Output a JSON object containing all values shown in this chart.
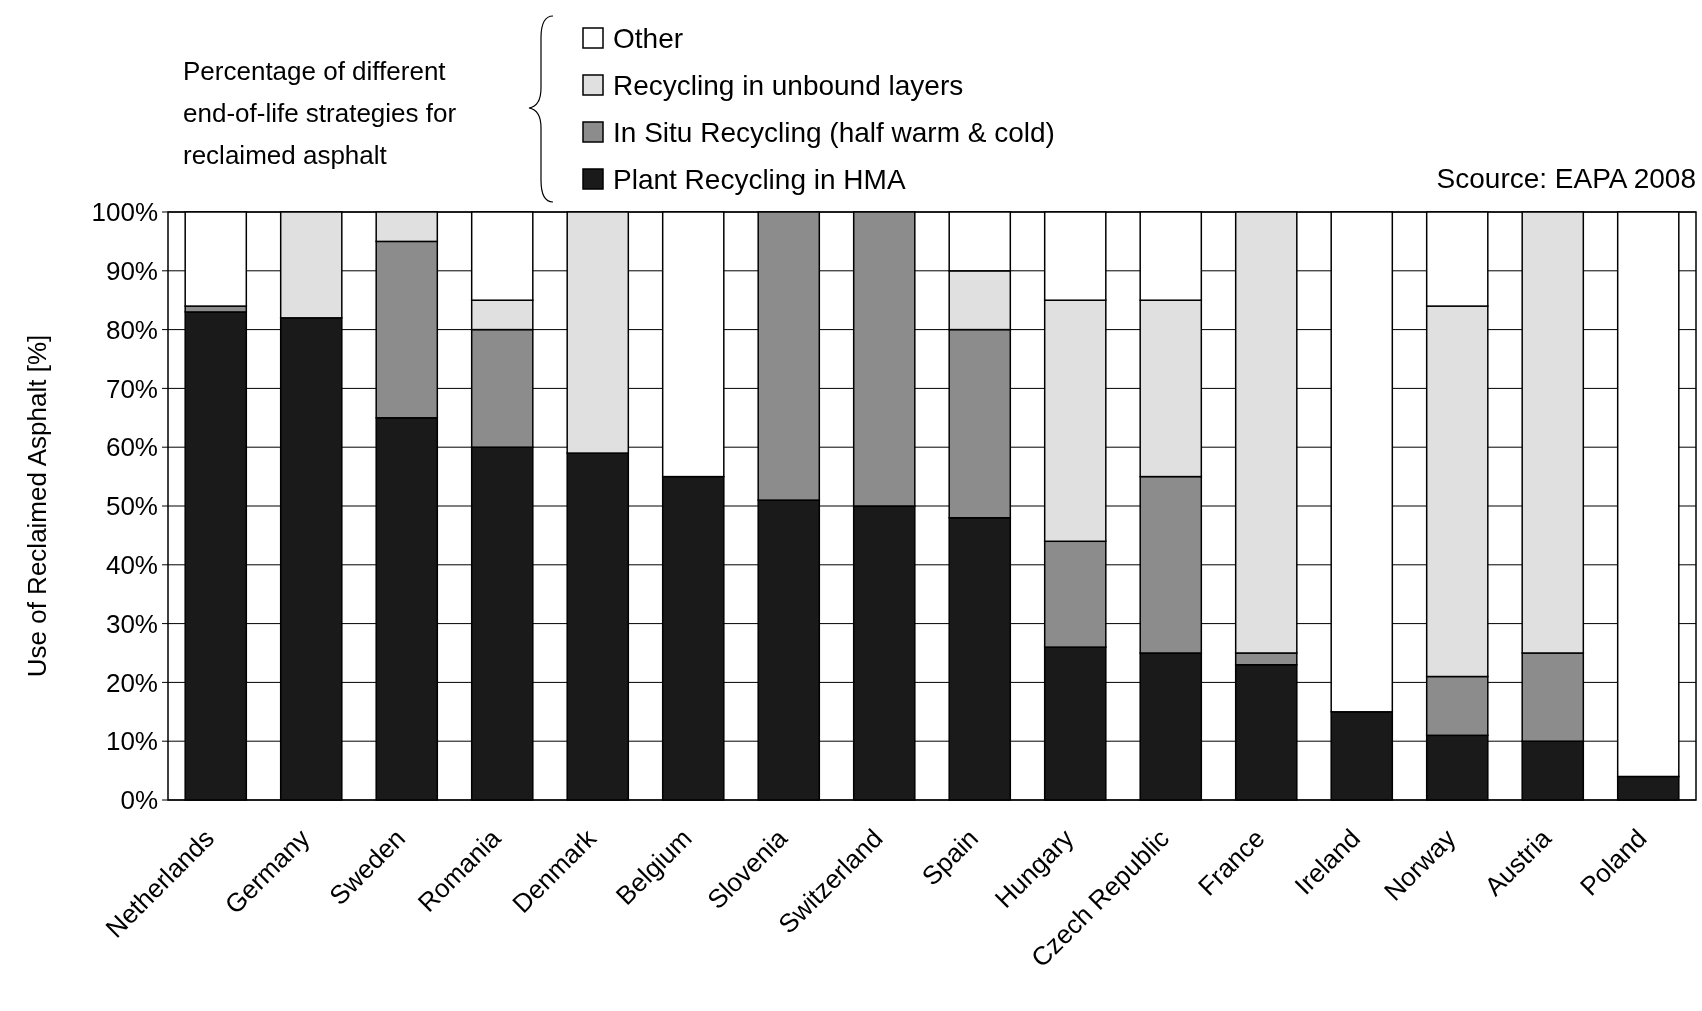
{
  "chart_data": {
    "type": "bar",
    "stacked": true,
    "ylabel": "Use of Reclaimed Asphalt [%]",
    "legend_title": "Percentage of different end-of-life strategies for reclaimed asphalt",
    "annotations": [
      "Scource: EAPA 2008"
    ],
    "categories": [
      "Netherlands",
      "Germany",
      "Sweden",
      "Romania",
      "Denmark",
      "Belgium",
      "Slovenia",
      "Switzerland",
      "Spain",
      "Hungary",
      "Czech Republic",
      "France",
      "Ireland",
      "Norway",
      "Austria",
      "Poland"
    ],
    "series": [
      {
        "name": "Plant Recycling in HMA",
        "color": "#1a1a1a",
        "values": [
          83,
          82,
          65,
          60,
          59,
          55,
          51,
          50,
          48,
          26,
          25,
          23,
          15,
          11,
          10,
          4
        ]
      },
      {
        "name": "In Situ Recycling (half warm & cold)",
        "color": "#8c8c8c",
        "values": [
          1,
          0,
          30,
          20,
          0,
          0,
          49,
          50,
          32,
          18,
          30,
          2,
          0,
          10,
          15,
          0
        ]
      },
      {
        "name": "Recycling in unbound layers",
        "color": "#e0e0e0",
        "values": [
          0,
          18,
          5,
          5,
          41,
          0,
          0,
          0,
          10,
          41,
          30,
          75,
          0,
          63,
          75,
          0
        ]
      },
      {
        "name": "Other",
        "color": "#ffffff",
        "values": [
          16,
          0,
          0,
          15,
          0,
          45,
          0,
          0,
          10,
          15,
          15,
          0,
          85,
          16,
          0,
          96
        ]
      }
    ],
    "ylim": [
      0,
      100
    ],
    "yticks": [
      {
        "value": 0,
        "label": "0%"
      },
      {
        "value": 10,
        "label": "10%"
      },
      {
        "value": 20,
        "label": "20%"
      },
      {
        "value": 30,
        "label": "30%"
      },
      {
        "value": 40,
        "label": "40%"
      },
      {
        "value": 50,
        "label": "50%"
      },
      {
        "value": 60,
        "label": "60%"
      },
      {
        "value": 70,
        "label": "70%"
      },
      {
        "value": 80,
        "label": "80%"
      },
      {
        "value": 90,
        "label": "90%"
      },
      {
        "value": 100,
        "label": "100%"
      }
    ],
    "grid": "y",
    "legend": "top"
  }
}
